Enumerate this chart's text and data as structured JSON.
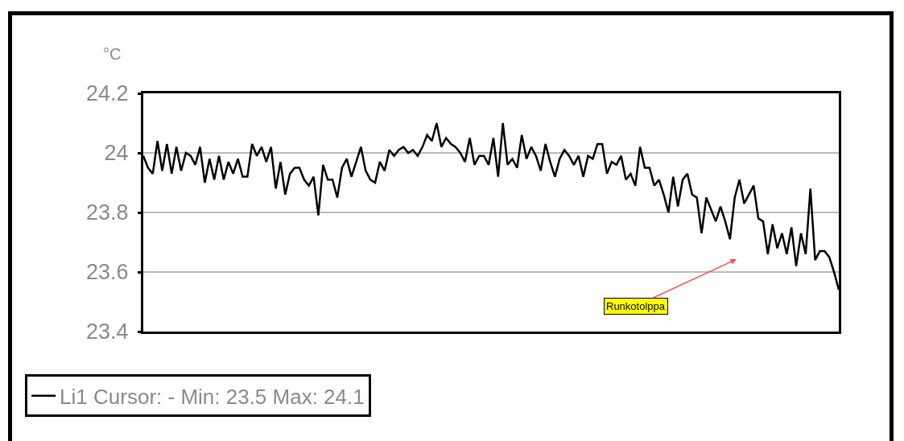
{
  "chart_data": {
    "type": "line",
    "ylabel": "°C",
    "categories": [
      null,
      null,
      null,
      null,
      null,
      null,
      null,
      null,
      null,
      null,
      null,
      null,
      null,
      null,
      null,
      null,
      null,
      null,
      null,
      null,
      null,
      null,
      null,
      null,
      null,
      null,
      null,
      null,
      null,
      null,
      null,
      null,
      null,
      null,
      null,
      null,
      null,
      null,
      null,
      null,
      null,
      null,
      null,
      null,
      null,
      null,
      null,
      null,
      null,
      null,
      null,
      null,
      null,
      null,
      null,
      null,
      null,
      null,
      null,
      null,
      null,
      null,
      null,
      null,
      null,
      null,
      null,
      null,
      null,
      null,
      null,
      null,
      null,
      null,
      null,
      null,
      null,
      null,
      null,
      null,
      null,
      null,
      null,
      null,
      null,
      null,
      null,
      null,
      null,
      null,
      null,
      null,
      null,
      null,
      null,
      null,
      null,
      null,
      null,
      null,
      null,
      null,
      null,
      null,
      null,
      null,
      null,
      null,
      null,
      null,
      null,
      null,
      null,
      null,
      null,
      null,
      null,
      null,
      null,
      null,
      null,
      null,
      null,
      null,
      null,
      null,
      null,
      null,
      null,
      null,
      null,
      null,
      null,
      null,
      null,
      null,
      null,
      null,
      null,
      null,
      null,
      null,
      null,
      null,
      null,
      null,
      null,
      null
    ],
    "series": [
      {
        "name": "Li1 Cursor: - Min: 23.5 Max: 24.1",
        "color": "#000000",
        "values": [
          23.99,
          23.95,
          23.93,
          24.04,
          23.94,
          24.03,
          23.93,
          24.02,
          23.94,
          24.0,
          23.99,
          23.96,
          24.02,
          23.9,
          23.98,
          23.91,
          23.99,
          23.91,
          23.97,
          23.93,
          23.98,
          23.92,
          23.92,
          24.03,
          23.99,
          24.02,
          23.97,
          24.02,
          23.88,
          23.97,
          23.86,
          23.93,
          23.95,
          23.95,
          23.91,
          23.89,
          23.92,
          23.79,
          23.96,
          23.91,
          23.91,
          23.85,
          23.95,
          23.98,
          23.92,
          23.97,
          24.02,
          23.94,
          23.91,
          23.9,
          23.97,
          23.94,
          24.01,
          23.99,
          24.01,
          24.02,
          24.0,
          24.01,
          23.99,
          24.02,
          24.06,
          24.04,
          24.1,
          24.02,
          24.05,
          24.03,
          24.02,
          24.0,
          23.97,
          24.05,
          23.96,
          23.99,
          23.99,
          23.96,
          24.05,
          23.92,
          24.1,
          23.96,
          23.98,
          23.95,
          24.06,
          23.98,
          24.02,
          23.99,
          23.94,
          24.03,
          23.97,
          23.92,
          23.98,
          24.01,
          23.99,
          23.96,
          23.99,
          23.92,
          23.99,
          23.98,
          24.03,
          24.03,
          23.93,
          23.97,
          23.96,
          23.99,
          23.91,
          23.93,
          23.89,
          24.02,
          23.95,
          23.95,
          23.89,
          23.91,
          23.86,
          23.8,
          23.92,
          23.82,
          23.91,
          23.93,
          23.86,
          23.85,
          23.73,
          23.85,
          23.81,
          23.77,
          23.82,
          23.77,
          23.71,
          23.85,
          23.91,
          23.83,
          23.86,
          23.89,
          23.78,
          23.77,
          23.66,
          23.76,
          23.68,
          23.73,
          23.66,
          23.75,
          23.62,
          23.73,
          23.66,
          23.88,
          23.64,
          23.67,
          23.67,
          23.65,
          23.6,
          23.54
        ]
      }
    ],
    "ylim": [
      23.4,
      24.2
    ],
    "yticks": [
      23.4,
      23.6,
      23.8,
      24,
      24.2
    ],
    "grid": "y",
    "legend": "bottom",
    "tick_labels": "y",
    "line_style": "solid",
    "annotations": [
      "Runkotolppa"
    ]
  }
}
